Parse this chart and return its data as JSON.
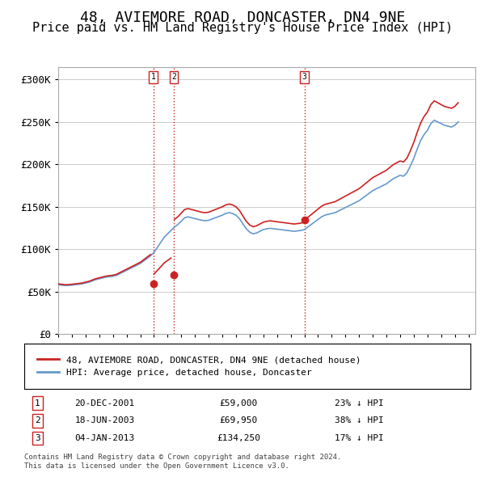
{
  "title": "48, AVIEMORE ROAD, DONCASTER, DN4 9NE",
  "subtitle": "Price paid vs. HM Land Registry's House Price Index (HPI)",
  "title_fontsize": 13,
  "subtitle_fontsize": 11,
  "ylabel_ticks": [
    "£0",
    "£50K",
    "£100K",
    "£150K",
    "£200K",
    "£250K",
    "£300K"
  ],
  "ytick_values": [
    0,
    50000,
    100000,
    150000,
    200000,
    250000,
    300000
  ],
  "ylim": [
    0,
    315000
  ],
  "xlim_start": 1995.0,
  "xlim_end": 2025.5,
  "bg_color": "#ffffff",
  "grid_color": "#cccccc",
  "hpi_color": "#6699cc",
  "price_color": "#cc2222",
  "vline_color": "#cc2222",
  "transactions": [
    {
      "num": 1,
      "date_str": "20-DEC-2001",
      "year": 2001.96,
      "price": 59000,
      "pct": "23%",
      "dir": "↓"
    },
    {
      "num": 2,
      "date_str": "18-JUN-2003",
      "year": 2003.46,
      "price": 69950,
      "pct": "38%",
      "dir": "↓"
    },
    {
      "num": 3,
      "date_str": "04-JAN-2013",
      "year": 2013.01,
      "price": 134250,
      "pct": "17%",
      "dir": "↓"
    }
  ],
  "legend_label_price": "48, AVIEMORE ROAD, DONCASTER, DN4 9NE (detached house)",
  "legend_label_hpi": "HPI: Average price, detached house, Doncaster",
  "footer1": "Contains HM Land Registry data © Crown copyright and database right 2024.",
  "footer2": "This data is licensed under the Open Government Licence v3.0.",
  "hpi_data": {
    "years": [
      1995.0,
      1995.25,
      1995.5,
      1995.75,
      1996.0,
      1996.25,
      1996.5,
      1996.75,
      1997.0,
      1997.25,
      1997.5,
      1997.75,
      1998.0,
      1998.25,
      1998.5,
      1998.75,
      1999.0,
      1999.25,
      1999.5,
      1999.75,
      2000.0,
      2000.25,
      2000.5,
      2000.75,
      2001.0,
      2001.25,
      2001.5,
      2001.75,
      2002.0,
      2002.25,
      2002.5,
      2002.75,
      2003.0,
      2003.25,
      2003.5,
      2003.75,
      2004.0,
      2004.25,
      2004.5,
      2004.75,
      2005.0,
      2005.25,
      2005.5,
      2005.75,
      2006.0,
      2006.25,
      2006.5,
      2006.75,
      2007.0,
      2007.25,
      2007.5,
      2007.75,
      2008.0,
      2008.25,
      2008.5,
      2008.75,
      2009.0,
      2009.25,
      2009.5,
      2009.75,
      2010.0,
      2010.25,
      2010.5,
      2010.75,
      2011.0,
      2011.25,
      2011.5,
      2011.75,
      2012.0,
      2012.25,
      2012.5,
      2012.75,
      2013.0,
      2013.25,
      2013.5,
      2013.75,
      2014.0,
      2014.25,
      2014.5,
      2014.75,
      2015.0,
      2015.25,
      2015.5,
      2015.75,
      2016.0,
      2016.25,
      2016.5,
      2016.75,
      2017.0,
      2017.25,
      2017.5,
      2017.75,
      2018.0,
      2018.25,
      2018.5,
      2018.75,
      2019.0,
      2019.25,
      2019.5,
      2019.75,
      2020.0,
      2020.25,
      2020.5,
      2020.75,
      2021.0,
      2021.25,
      2021.5,
      2021.75,
      2022.0,
      2022.25,
      2022.5,
      2022.75,
      2023.0,
      2023.25,
      2023.5,
      2023.75,
      2024.0,
      2024.25
    ],
    "values": [
      58000,
      57500,
      57000,
      57200,
      57500,
      58000,
      58500,
      59000,
      60000,
      61000,
      62500,
      64000,
      65000,
      66000,
      67000,
      67500,
      68000,
      69000,
      71000,
      73000,
      75000,
      77000,
      79000,
      81000,
      83000,
      86000,
      89000,
      92000,
      96000,
      102000,
      108000,
      114000,
      118000,
      122000,
      126000,
      129000,
      133000,
      137000,
      138000,
      137000,
      136000,
      135000,
      134000,
      133500,
      134000,
      135500,
      137000,
      138500,
      140000,
      142000,
      143000,
      142000,
      140000,
      136000,
      130000,
      124000,
      120000,
      118000,
      119000,
      121000,
      123000,
      124000,
      124500,
      124000,
      123500,
      123000,
      122500,
      122000,
      121500,
      121000,
      121500,
      122000,
      123000,
      126000,
      129000,
      132000,
      135000,
      138000,
      140000,
      141000,
      142000,
      143000,
      145000,
      147000,
      149000,
      151000,
      153000,
      155000,
      157000,
      160000,
      163000,
      166000,
      169000,
      171000,
      173000,
      175000,
      177000,
      180000,
      183000,
      185000,
      187000,
      186000,
      190000,
      198000,
      207000,
      218000,
      228000,
      235000,
      240000,
      248000,
      252000,
      250000,
      248000,
      246000,
      245000,
      244000,
      246000,
      250000
    ]
  }
}
